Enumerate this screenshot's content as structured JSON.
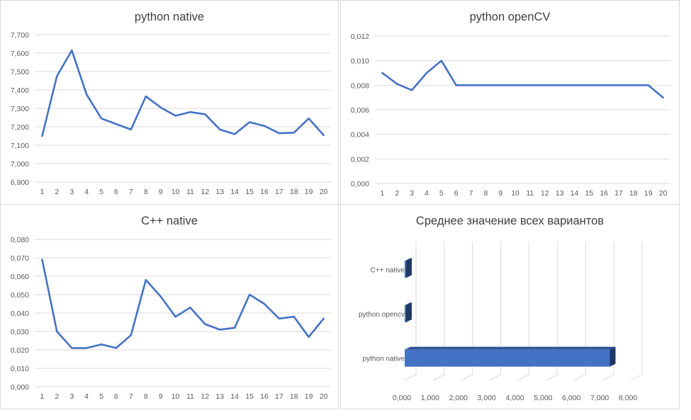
{
  "chart_data": [
    {
      "type": "line",
      "title": "python native",
      "x": [
        1,
        2,
        3,
        4,
        5,
        6,
        7,
        8,
        9,
        10,
        11,
        12,
        13,
        14,
        15,
        16,
        17,
        18,
        19,
        20
      ],
      "values": [
        7.15,
        7.475,
        7.615,
        7.375,
        7.245,
        7.215,
        7.185,
        7.365,
        7.305,
        7.26,
        7.28,
        7.268,
        7.185,
        7.16,
        7.225,
        7.205,
        7.165,
        7.168,
        7.245,
        7.155
      ],
      "ylim": [
        6.9,
        7.7
      ],
      "yticks": [
        "6,900",
        "7,000",
        "7,100",
        "7,200",
        "7,300",
        "7,400",
        "7,500",
        "7,600",
        "7,700"
      ],
      "grid": true,
      "color": "#4472c4"
    },
    {
      "type": "line",
      "title": "python openCV",
      "x": [
        1,
        2,
        3,
        4,
        5,
        6,
        7,
        8,
        9,
        10,
        11,
        12,
        13,
        14,
        15,
        16,
        17,
        18,
        19,
        20
      ],
      "values": [
        0.009,
        0.0081,
        0.0076,
        0.009,
        0.01,
        0.008,
        0.008,
        0.008,
        0.008,
        0.008,
        0.008,
        0.008,
        0.008,
        0.008,
        0.008,
        0.008,
        0.008,
        0.008,
        0.008,
        0.007
      ],
      "ylim": [
        0,
        0.012
      ],
      "yticks": [
        "0,000",
        "0,002",
        "0,004",
        "0,006",
        "0,008",
        "0,010",
        "0,012"
      ],
      "grid": true,
      "color": "#4472c4"
    },
    {
      "type": "line",
      "title": "C++ native",
      "x": [
        1,
        2,
        3,
        4,
        5,
        6,
        7,
        8,
        9,
        10,
        11,
        12,
        13,
        14,
        15,
        16,
        17,
        18,
        19,
        20
      ],
      "values": [
        0.069,
        0.03,
        0.021,
        0.021,
        0.023,
        0.021,
        0.028,
        0.058,
        0.049,
        0.038,
        0.043,
        0.034,
        0.031,
        0.032,
        0.05,
        0.045,
        0.037,
        0.038,
        0.027,
        0.037
      ],
      "ylim": [
        0,
        0.08
      ],
      "yticks": [
        "0,000",
        "0,010",
        "0,020",
        "0,030",
        "0,040",
        "0,050",
        "0,060",
        "0,070",
        "0,080"
      ],
      "grid": true,
      "color": "#4472c4"
    },
    {
      "type": "bar",
      "orientation": "horizontal",
      "style": "3d",
      "title": "Среднее значение всех вариантов",
      "categories": [
        "python native",
        "python opencv",
        "C++ native"
      ],
      "values": [
        7.26,
        0.008,
        0.037
      ],
      "xlim": [
        0,
        8
      ],
      "xticks": [
        "0,000",
        "1,000",
        "2,000",
        "3,000",
        "4,000",
        "5,000",
        "6,000",
        "7,000",
        "8,000"
      ],
      "grid": true,
      "color": "#4472c4"
    }
  ]
}
